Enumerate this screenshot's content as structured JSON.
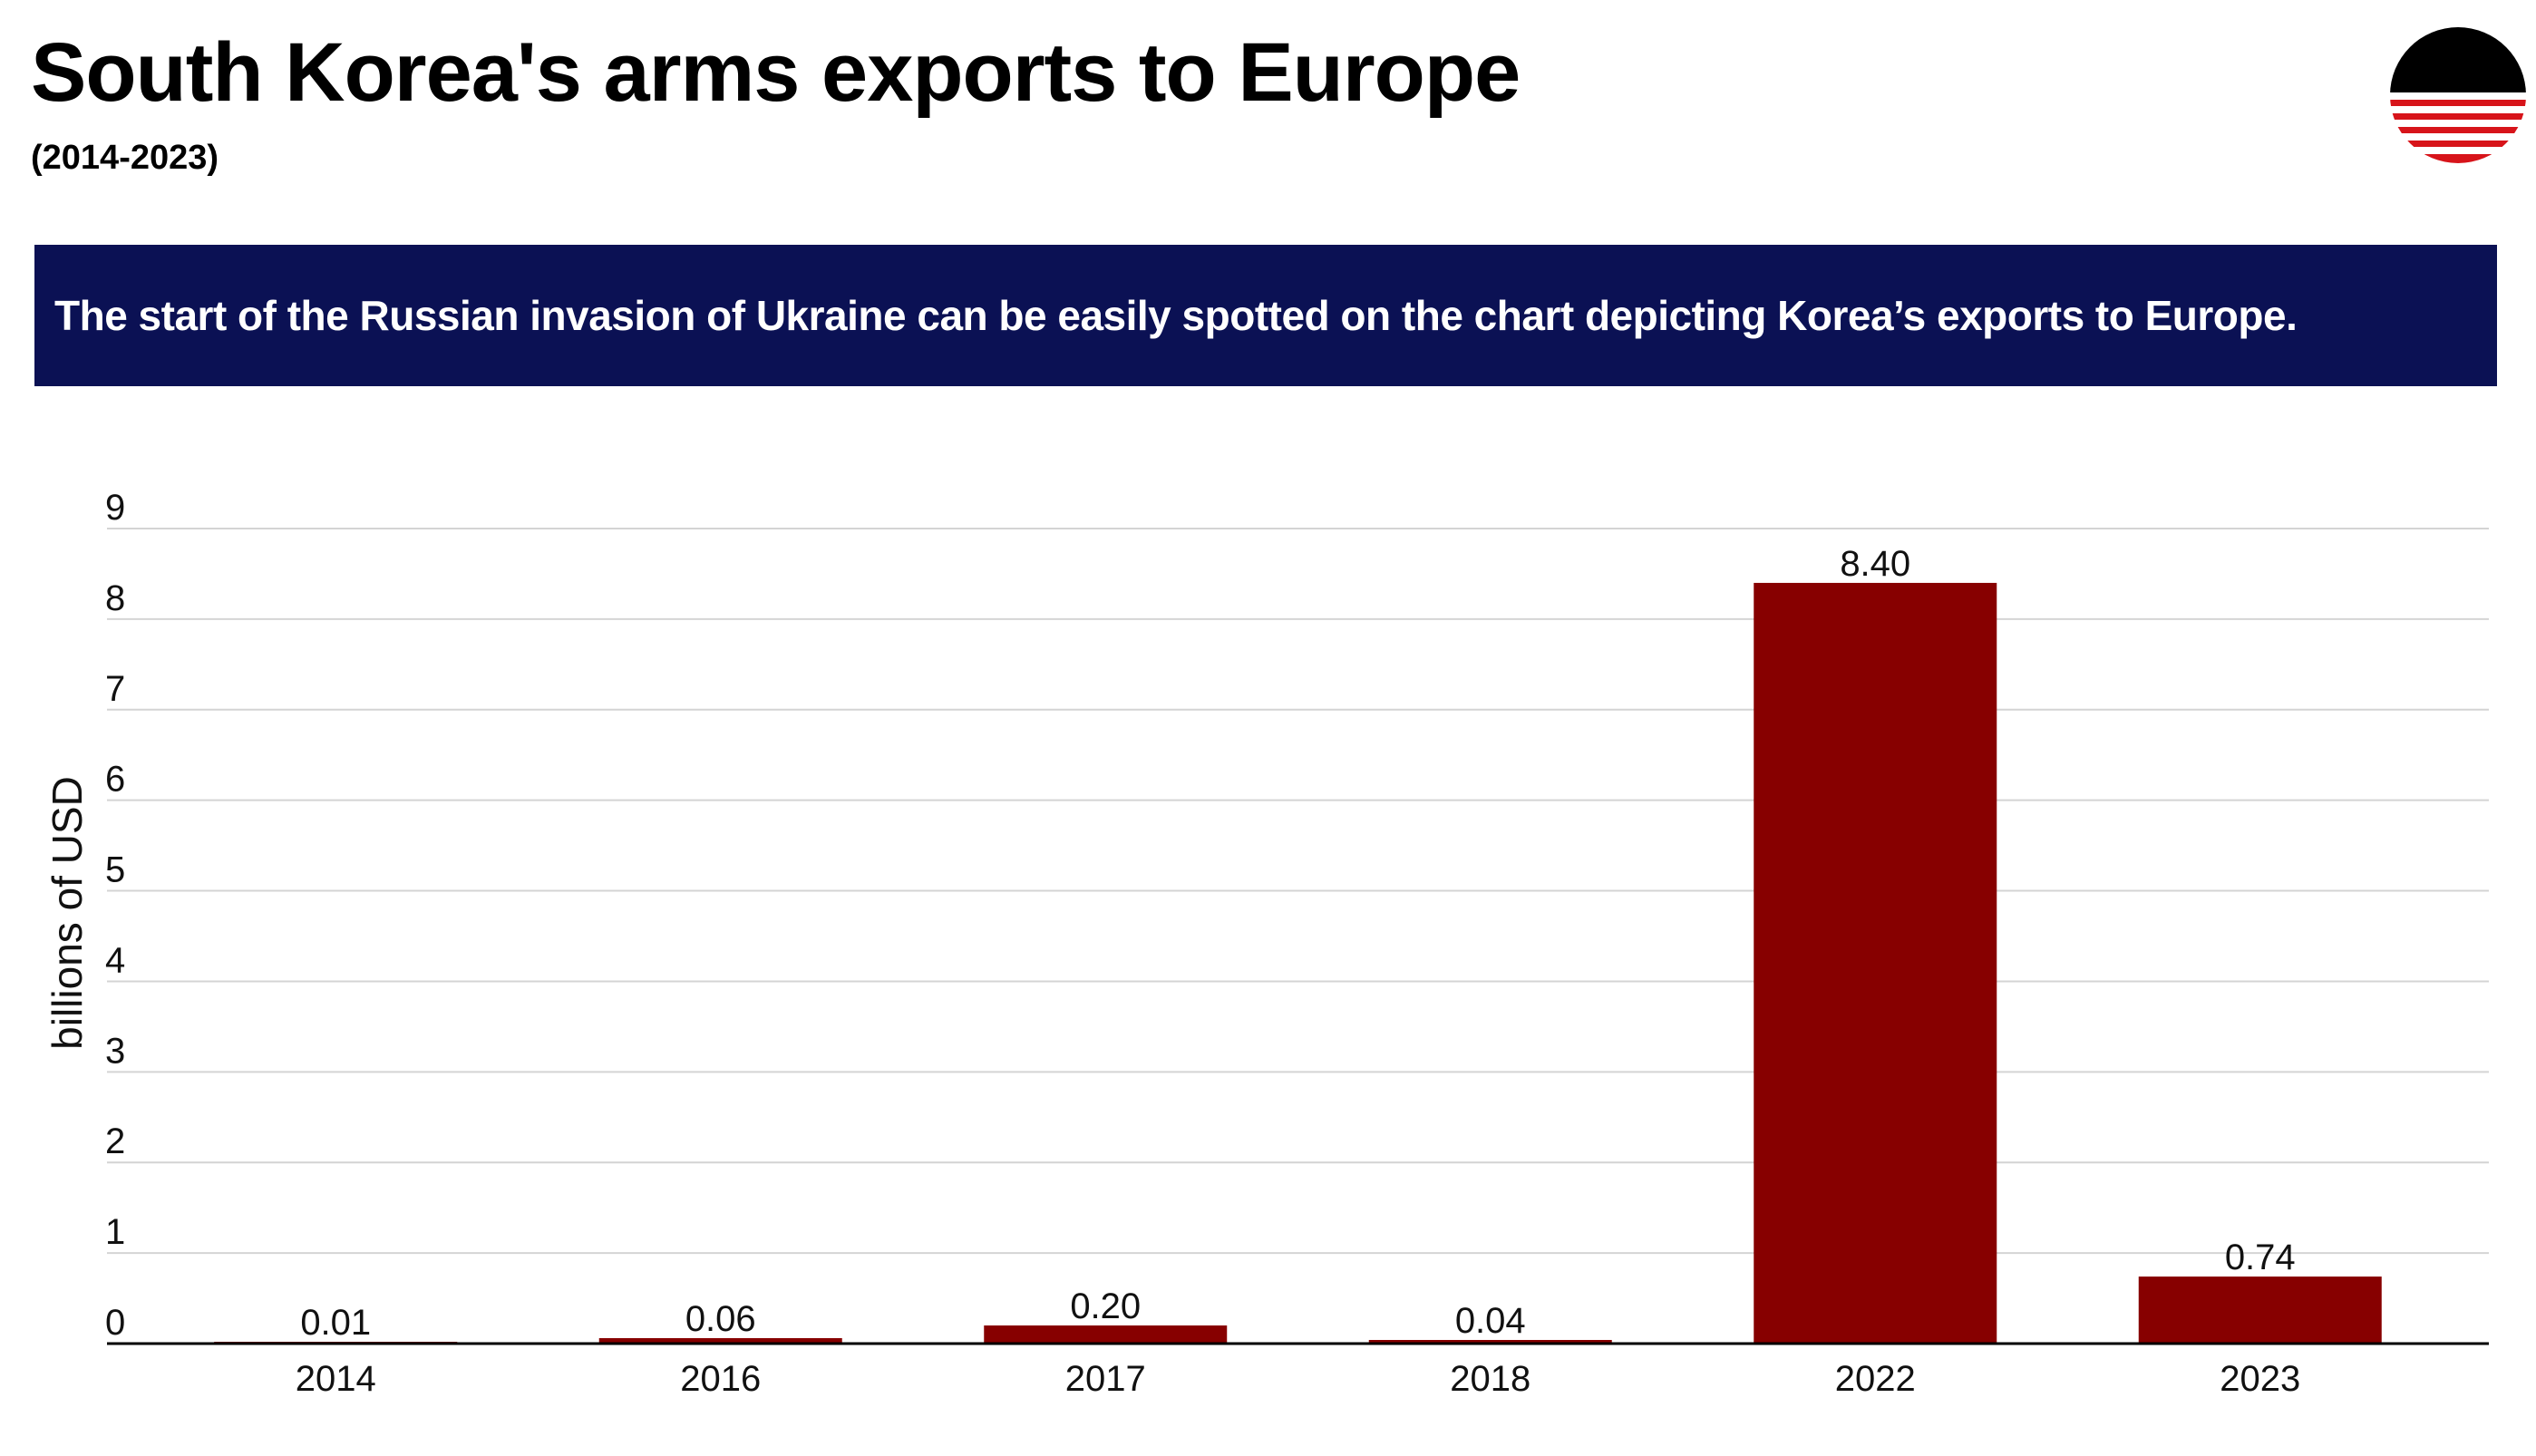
{
  "header": {
    "title": "South Korea's arms exports to Europe",
    "subtitle": "(2014-2023)"
  },
  "banner": {
    "text": "The start of the Russian invasion of Ukraine can be easily spotted on the chart depicting Korea’s exports to Europe."
  },
  "logo": {
    "icon": "striped-circle-logo",
    "colors": [
      "#000000",
      "#d7141a",
      "#ffffff"
    ]
  },
  "colors": {
    "bar": "#870000",
    "banner": "#0b1154",
    "grid": "#d4d4d4",
    "axis": "#000000"
  },
  "chart_data": {
    "type": "bar",
    "title": "",
    "xlabel": "",
    "ylabel": "billions of USD",
    "categories": [
      "2014",
      "2016",
      "2017",
      "2018",
      "2022",
      "2023"
    ],
    "values": [
      0.01,
      0.06,
      0.2,
      0.04,
      8.4,
      0.74
    ],
    "data_labels": [
      "0.01",
      "0.06",
      "0.20",
      "0.04",
      "8.40",
      "0.74"
    ],
    "ylim": [
      0,
      9
    ],
    "yticks": [
      "0",
      "1",
      "2",
      "3",
      "4",
      "5",
      "6",
      "7",
      "8",
      "9"
    ],
    "grid": true,
    "legend": "none"
  }
}
